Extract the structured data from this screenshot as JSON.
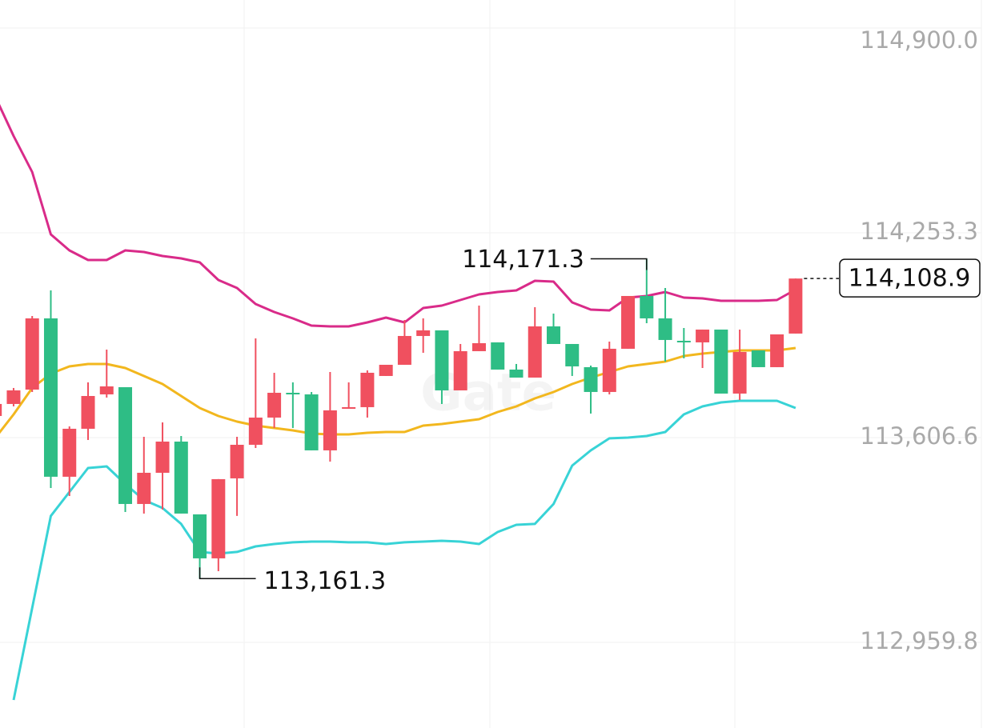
{
  "chart_data": {
    "type": "candlestick",
    "watermark": "Gate",
    "ylim": [
      112689.6,
      114988.4
    ],
    "yticks": [
      {
        "value": 114900.0,
        "label": "114,900.0"
      },
      {
        "value": 114253.3,
        "label": "114,253.3"
      },
      {
        "value": 113606.6,
        "label": "113,606.6"
      },
      {
        "value": 112959.8,
        "label": "112,959.8"
      }
    ],
    "grid": true,
    "up_color": "#f0505f",
    "down_color": "#2ebd85",
    "open": [
      113674.9,
      113712.8,
      113758.2,
      113983.1,
      113483.0,
      113634.5,
      113743.1,
      113765.8,
      113397.0,
      113495.5,
      113594.0,
      113364.2,
      113225.3,
      113477.9,
      113583.9,
      113669.8,
      113748.1,
      113743.1,
      113566.3,
      113697.6,
      113702.7,
      113801.2,
      113836.5,
      113927.5,
      113945.2,
      113755.7,
      113879.5,
      113907.3,
      113821.4,
      113796.1,
      113957.8,
      113902.2,
      113829.0,
      113750.7,
      113887.1,
      114053.8,
      113983.1,
      113912.3,
      113907.3,
      113947.7,
      113745.6,
      113882.0,
      113829.0,
      113935.1
    ],
    "high": [
      113730.5,
      113763.3,
      113990.6,
      114071.5,
      113642.0,
      113781.0,
      113884.5,
      113765.8,
      113609.2,
      113654.7,
      113611.7,
      113364.2,
      113475.4,
      113609.2,
      113919.9,
      113811.3,
      113781.0,
      113750.7,
      113813.8,
      113781.0,
      113818.9,
      113836.5,
      113978.0,
      113983.1,
      113945.2,
      113902.2,
      114023.5,
      113907.3,
      113839.1,
      114018.4,
      113998.2,
      113902.2,
      113834.0,
      113909.8,
      114053.8,
      114171.3,
      114079.0,
      113952.7,
      113947.7,
      113947.7,
      113947.7,
      113882.0,
      113932.5,
      114108.9
    ],
    "low": [
      113662.2,
      113705.2,
      113750.7,
      113447.6,
      113422.3,
      113599.1,
      113733.0,
      113371.8,
      113366.7,
      113379.4,
      113366.7,
      113161.3,
      113184.8,
      113359.2,
      113573.8,
      113637.0,
      113637.0,
      113566.3,
      113530.9,
      113697.6,
      113669.8,
      113801.2,
      113836.5,
      113874.4,
      113712.8,
      113755.7,
      113879.5,
      113821.4,
      113796.1,
      113796.1,
      113902.2,
      113801.2,
      113682.5,
      113743.1,
      113887.1,
      113967.9,
      113846.6,
      113856.8,
      113826.4,
      113745.6,
      113725.4,
      113829.0,
      113829.0,
      113935.1
    ],
    "close": [
      113712.8,
      113755.7,
      113983.1,
      113483.0,
      113634.5,
      113738.0,
      113768.3,
      113397.0,
      113495.5,
      113594.0,
      113366.7,
      113225.3,
      113475.4,
      113583.9,
      113669.8,
      113748.1,
      113743.1,
      113566.3,
      113692.6,
      113702.7,
      113811.3,
      113836.5,
      113927.5,
      113945.2,
      113755.7,
      113879.5,
      113904.7,
      113821.4,
      113796.1,
      113957.8,
      113902.2,
      113831.5,
      113750.7,
      113887.1,
      114053.8,
      113983.1,
      113914.9,
      113907.3,
      113947.7,
      113745.6,
      113877.0,
      113829.0,
      113932.5,
      114108.9
    ],
    "lines": [
      {
        "color": "#d92b89",
        "values": [
          114685.3,
          114559.0,
          114445.3,
          114248.3,
          114197.8,
          114167.4,
          114167.4,
          114197.8,
          114192.7,
          114180.1,
          114172.5,
          114159.9,
          114104.3,
          114079.0,
          114028.5,
          114003.3,
          113983.1,
          113960.3,
          113957.8,
          113957.8,
          113970.4,
          113985.6,
          113970.4,
          114015.9,
          114023.5,
          114041.1,
          114058.8,
          114066.4,
          114071.5,
          114101.8,
          114099.2,
          114033.6,
          114010.8,
          114008.3,
          114048.7,
          114053.8,
          114066.4,
          114048.7,
          114046.2,
          114038.6,
          114038.6,
          114038.6,
          114041.1,
          114074.0
        ]
      },
      {
        "color": "#f2b71e",
        "values": [
          113604.2,
          113679.9,
          113763.3,
          113808.8,
          113831.5,
          113839.1,
          113839.1,
          113826.4,
          113801.2,
          113775.9,
          113738.0,
          113700.1,
          113674.9,
          113657.2,
          113644.6,
          113637.0,
          113629.4,
          113619.3,
          113616.8,
          113616.8,
          113621.8,
          113624.4,
          113624.4,
          113644.6,
          113649.6,
          113657.2,
          113664.8,
          113687.5,
          113705.2,
          113730.5,
          113750.7,
          113775.9,
          113796.1,
          113813.8,
          113831.5,
          113839.1,
          113846.6,
          113864.3,
          113871.9,
          113877.0,
          113882.0,
          113882.0,
          113882.0,
          113889.6
        ]
      },
      {
        "color": "#38d3d6",
        "values": [
          null,
          112778.1,
          113068.6,
          113359.2,
          113434.9,
          113510.7,
          113515.7,
          113460.2,
          113409.6,
          113384.4,
          113333.9,
          113245.5,
          113240.4,
          113245.5,
          113263.1,
          113270.7,
          113275.8,
          113278.3,
          113278.3,
          113275.8,
          113275.8,
          113270.7,
          113275.8,
          113278.3,
          113280.8,
          113278.3,
          113270.7,
          113308.6,
          113331.3,
          113333.9,
          113397.0,
          113518.3,
          113566.3,
          113604.2,
          113606.7,
          113611.7,
          113624.4,
          113679.9,
          113705.2,
          113717.8,
          113722.9,
          113722.9,
          113722.9,
          113700.1
        ]
      }
    ],
    "high_marker": {
      "value": 114171.3,
      "label": "114,171.3"
    },
    "low_marker": {
      "value": 113161.3,
      "label": "113,161.3"
    },
    "last_price": {
      "value": 114108.9,
      "label": "114,108.9"
    }
  }
}
